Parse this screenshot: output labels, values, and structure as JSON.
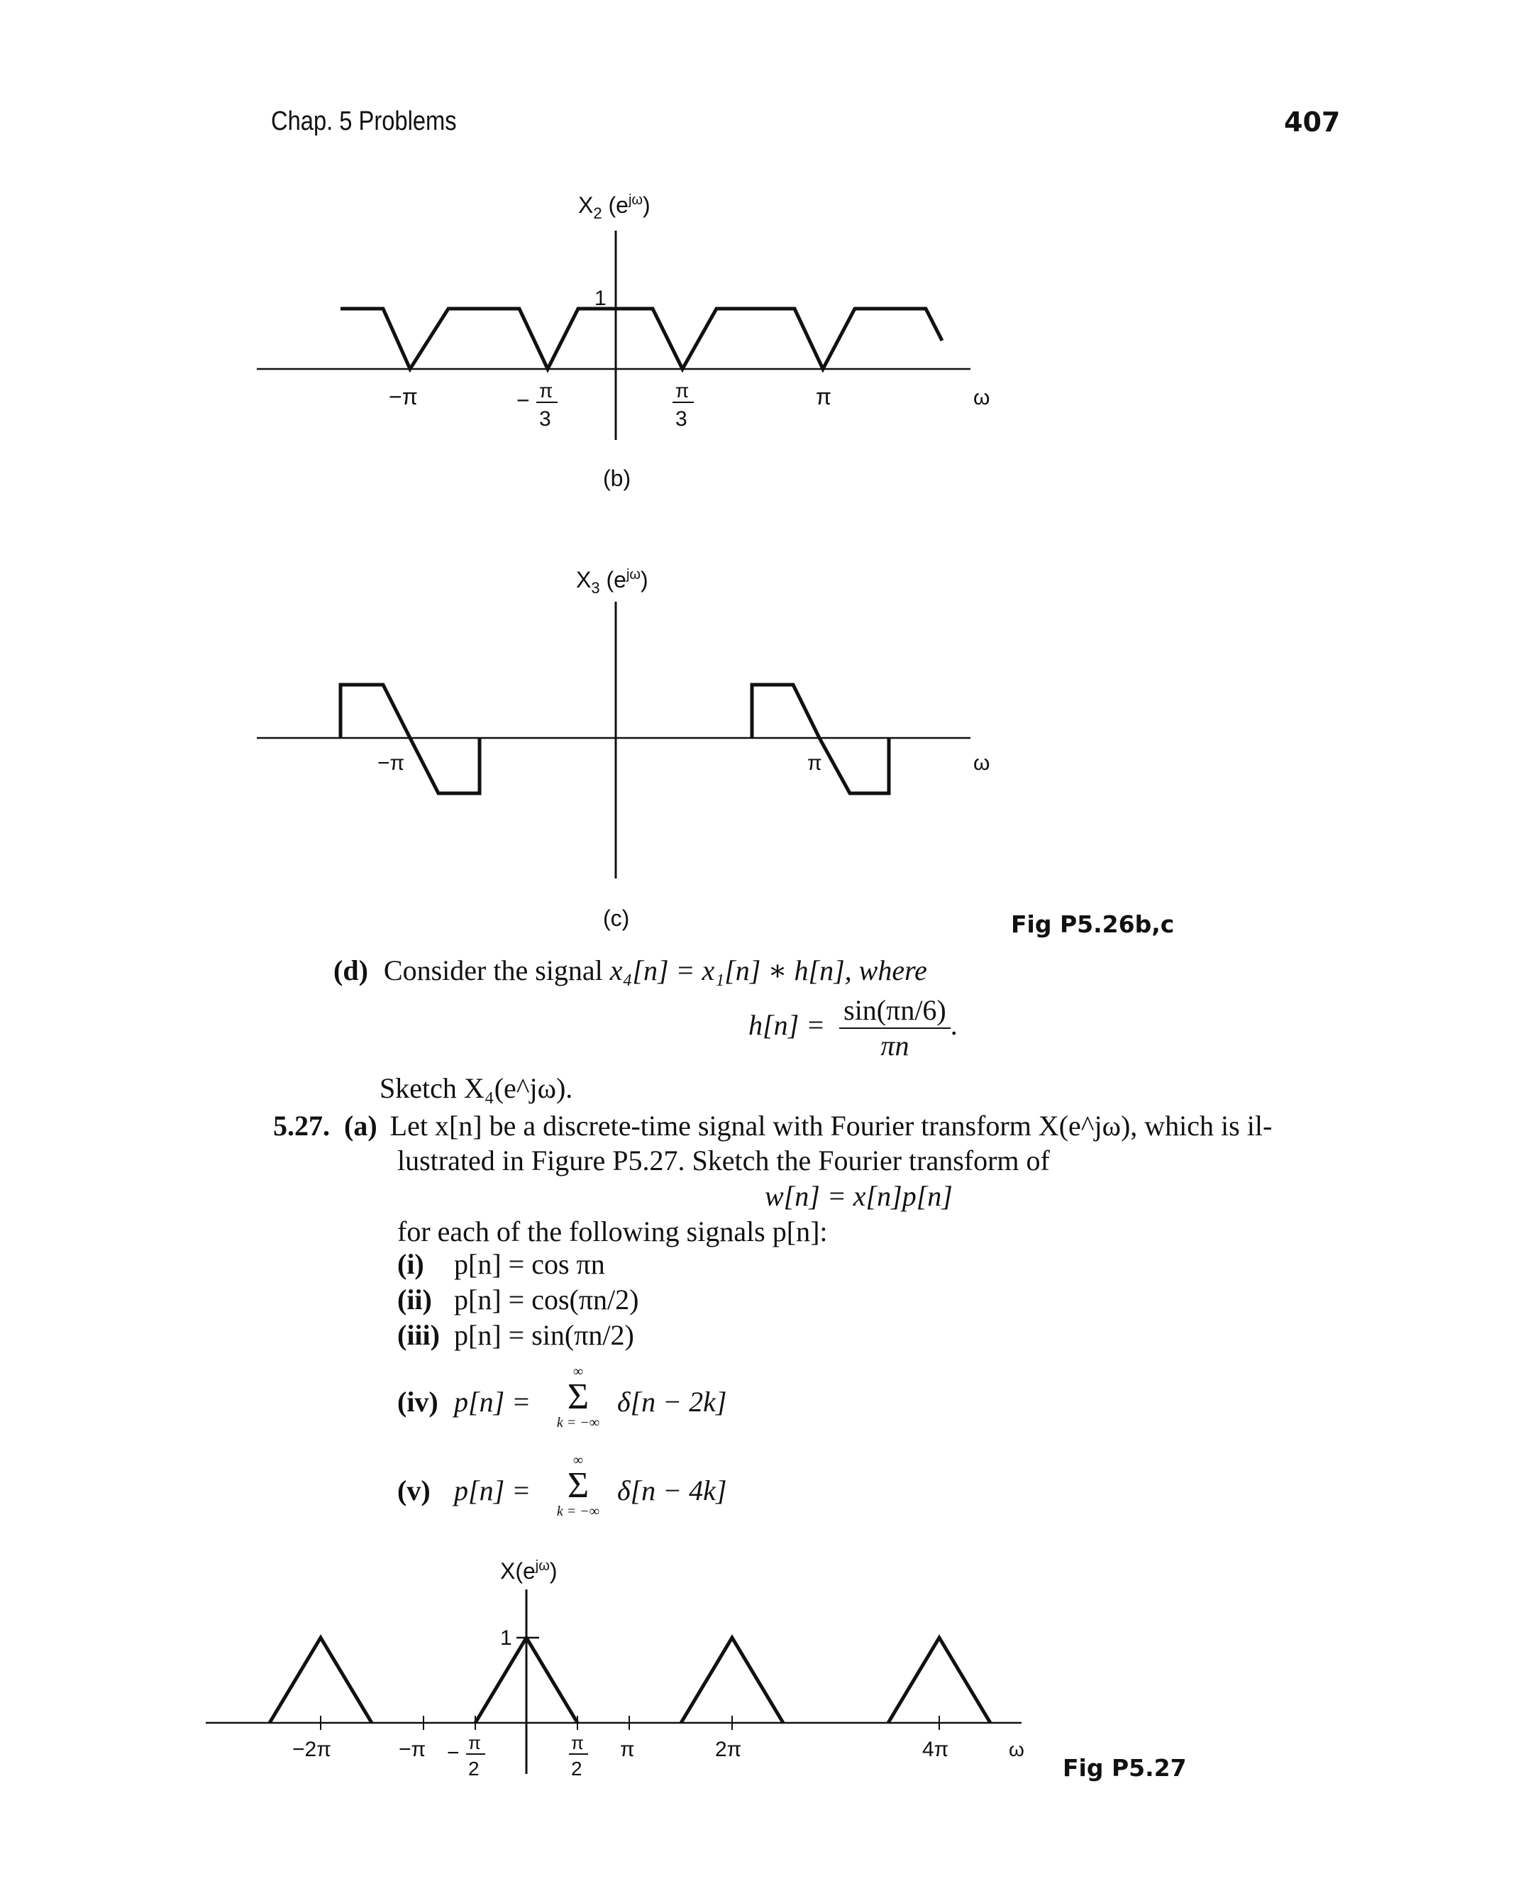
{
  "header": {
    "chapter": "Chap. 5 Problems",
    "page": "407"
  },
  "fig_b": {
    "ylabel": "X",
    "ylabel_sub": "2",
    "ylabel_arg": "(e",
    "ylabel_sup": "jω",
    "ylabel_close": ")",
    "ytick": "1",
    "ticks": [
      "−π",
      "−",
      "π",
      "3",
      "π",
      "3",
      "π"
    ],
    "xlabel": "ω",
    "caption": "(b)"
  },
  "fig_c": {
    "ylabel": "X",
    "ylabel_sub": "3",
    "ylabel_arg": "(e",
    "ylabel_sup": "jω",
    "ylabel_close": ")",
    "ticks": [
      "−π",
      "π"
    ],
    "xlabel": "ω",
    "caption": "(c)",
    "figlabel": "Fig P5.26b,c"
  },
  "problem_d": {
    "label": "(d)",
    "text_pre": "Consider the signal ",
    "eq": "x₄[n] = x₁[n] ∗ h[n], where",
    "h_lhs": "h[n] =",
    "h_num": "sin(πn/6)",
    "h_den": "πn",
    "h_end": ".",
    "sketch": "Sketch X₄(e^jω)."
  },
  "problem_527": {
    "number": "5.27.",
    "part": "(a)",
    "line1": "Let x[n] be a discrete-time signal with Fourier transform X(e^jω), which is il-",
    "line2": "lustrated in Figure P5.27. Sketch the Fourier transform of",
    "wn": "w[n] = x[n]p[n]",
    "line3": "for each of the following signals p[n]:",
    "items": [
      {
        "label": "(i)",
        "expr": "p[n] = cos πn"
      },
      {
        "label": "(ii)",
        "expr": "p[n] = cos(πn/2)"
      },
      {
        "label": "(iii)",
        "expr": "p[n] = sin(πn/2)"
      },
      {
        "label": "(iv)",
        "lhs": "p[n] =",
        "top": "∞",
        "bottom": "k = −∞",
        "rhs": "δ[n − 2k]"
      },
      {
        "label": "(v)",
        "lhs": "p[n] =",
        "top": "∞",
        "bottom": "k = −∞",
        "rhs": "δ[n − 4k]"
      }
    ]
  },
  "fig_527": {
    "ylabel": "X(e",
    "ylabel_sup": "jω",
    "ylabel_close": ")",
    "ytick": "1",
    "ticks": [
      "−2π",
      "−π",
      "−",
      "π",
      "2",
      "π",
      "2",
      "π",
      "2π",
      "4π"
    ],
    "xlabel": "ω",
    "figlabel": "Fig P5.27"
  }
}
